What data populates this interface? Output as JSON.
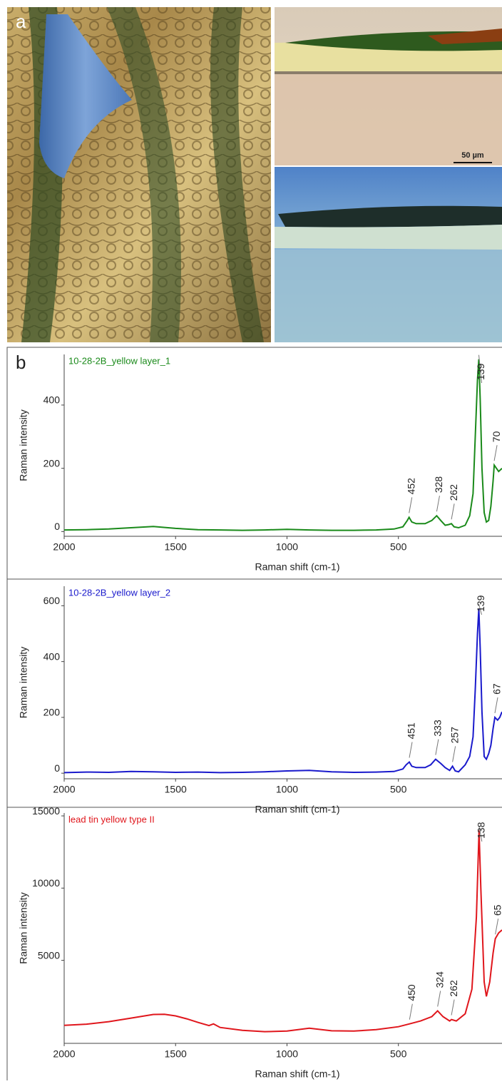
{
  "figure": {
    "panel_a_label": "a",
    "scale_bar": "50 µm",
    "panel_b_label": "b"
  },
  "chart_data": [
    {
      "type": "line",
      "xlabel": "Raman shift (cm-1)",
      "ylabel": "Raman intensity",
      "xlim": [
        2000,
        35
      ],
      "xticks": [
        2000,
        1500,
        1000,
        500
      ],
      "ylim": [
        -15,
        560
      ],
      "yticks": [
        0,
        200,
        400
      ],
      "series": [
        {
          "name": "10-28-2B_yellow layer_1",
          "color": "#1a8a1a",
          "x": [
            2000,
            1900,
            1800,
            1700,
            1600,
            1500,
            1400,
            1300,
            1200,
            1100,
            1000,
            900,
            800,
            700,
            600,
            520,
            480,
            460,
            452,
            440,
            420,
            380,
            350,
            328,
            310,
            290,
            275,
            262,
            250,
            230,
            200,
            180,
            165,
            155,
            145,
            139,
            133,
            125,
            115,
            105,
            95,
            85,
            75,
            70,
            60,
            50,
            35
          ],
          "values": [
            5,
            6,
            8,
            12,
            16,
            10,
            6,
            5,
            4,
            5,
            7,
            5,
            4,
            4,
            5,
            8,
            15,
            35,
            45,
            30,
            25,
            25,
            35,
            50,
            35,
            20,
            22,
            25,
            15,
            12,
            20,
            50,
            120,
            300,
            480,
            545,
            420,
            200,
            60,
            30,
            35,
            80,
            160,
            210,
            200,
            190,
            200
          ]
        }
      ],
      "annotations": [
        {
          "text": "452",
          "x": 452
        },
        {
          "text": "328",
          "x": 328
        },
        {
          "text": "262",
          "x": 262
        },
        {
          "text": "139",
          "x": 139
        },
        {
          "text": "70",
          "x": 70
        }
      ]
    },
    {
      "type": "line",
      "xlabel": "Raman shift (cm-1)",
      "ylabel": "Raman intensity",
      "xlim": [
        2000,
        35
      ],
      "xticks": [
        2000,
        1500,
        1000,
        500
      ],
      "ylim": [
        -20,
        670
      ],
      "yticks": [
        0,
        200,
        400,
        600
      ],
      "series": [
        {
          "name": "10-28-2B_yellow layer_2",
          "color": "#1a1acc",
          "x": [
            2000,
            1900,
            1800,
            1700,
            1600,
            1500,
            1400,
            1300,
            1200,
            1100,
            1000,
            900,
            800,
            700,
            600,
            520,
            480,
            465,
            451,
            440,
            420,
            380,
            355,
            333,
            310,
            290,
            270,
            257,
            245,
            230,
            200,
            180,
            165,
            155,
            145,
            139,
            133,
            125,
            115,
            105,
            95,
            85,
            75,
            67,
            55,
            45,
            35
          ],
          "values": [
            2,
            4,
            3,
            6,
            5,
            3,
            4,
            2,
            3,
            5,
            8,
            10,
            5,
            3,
            4,
            6,
            15,
            30,
            40,
            25,
            20,
            20,
            30,
            50,
            35,
            20,
            10,
            25,
            8,
            5,
            30,
            60,
            130,
            300,
            500,
            590,
            450,
            220,
            60,
            50,
            70,
            100,
            160,
            200,
            190,
            200,
            220
          ]
        }
      ],
      "annotations": [
        {
          "text": "451",
          "x": 451
        },
        {
          "text": "333",
          "x": 333
        },
        {
          "text": "257",
          "x": 257
        },
        {
          "text": "139",
          "x": 139
        },
        {
          "text": "67",
          "x": 67
        }
      ]
    },
    {
      "type": "line",
      "xlabel": "Raman shift (cm-1)",
      "ylabel": "Raman intensity",
      "xlim": [
        2000,
        35
      ],
      "xticks": [
        2000,
        1500,
        1000,
        500
      ],
      "ylim": [
        -750,
        15200
      ],
      "yticks": [
        5000,
        10000,
        15000
      ],
      "series": [
        {
          "name": "lead tin yellow type II",
          "color": "#e0161c",
          "x": [
            2000,
            1900,
            1800,
            1700,
            1600,
            1550,
            1500,
            1450,
            1400,
            1350,
            1330,
            1300,
            1200,
            1100,
            1000,
            950,
            900,
            800,
            700,
            600,
            500,
            450,
            400,
            350,
            324,
            300,
            270,
            262,
            240,
            200,
            170,
            150,
            138,
            130,
            115,
            105,
            90,
            75,
            65,
            50,
            35
          ],
          "values": [
            500,
            580,
            750,
            1000,
            1250,
            1260,
            1150,
            950,
            700,
            480,
            600,
            350,
            150,
            60,
            100,
            200,
            300,
            120,
            100,
            200,
            400,
            600,
            800,
            1100,
            1500,
            1100,
            800,
            900,
            800,
            1300,
            3000,
            8000,
            14000,
            10000,
            3500,
            2500,
            3500,
            5500,
            6500,
            6900,
            7100
          ]
        }
      ],
      "annotations": [
        {
          "text": "450",
          "x": 450
        },
        {
          "text": "324",
          "x": 324
        },
        {
          "text": "262",
          "x": 262
        },
        {
          "text": "138",
          "x": 138
        },
        {
          "text": "65",
          "x": 65
        }
      ]
    }
  ]
}
